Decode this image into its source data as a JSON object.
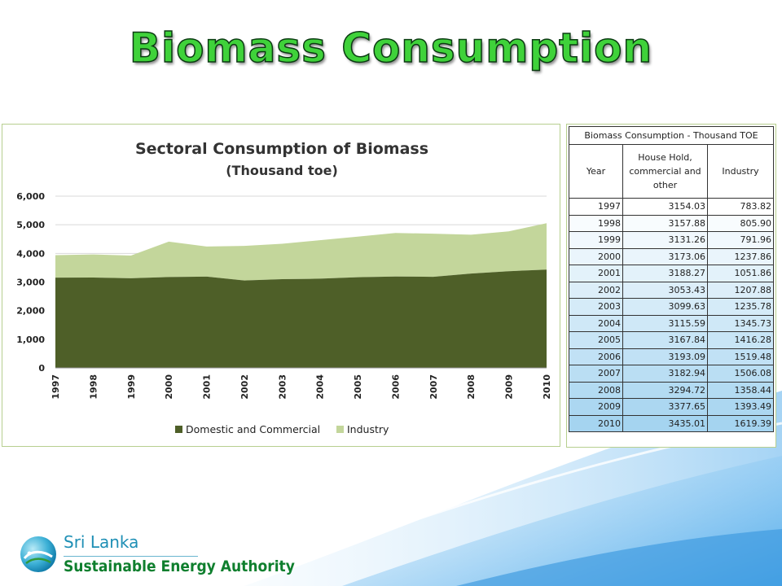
{
  "slide": {
    "title": "Biomass Consumption"
  },
  "chart_data": {
    "type": "area",
    "stacked": true,
    "title": "Sectoral Consumption of Biomass",
    "subtitle": "(Thousand  toe)",
    "categories": [
      "1997",
      "1998",
      "1999",
      "2000",
      "2001",
      "2002",
      "2003",
      "2004",
      "2005",
      "2006",
      "2007",
      "2008",
      "2009",
      "2010"
    ],
    "series": [
      {
        "name": "Domestic and Commercial",
        "color": "#4e5f28",
        "values": [
          3154.03,
          3157.88,
          3131.26,
          3173.06,
          3188.27,
          3053.43,
          3099.63,
          3115.59,
          3167.84,
          3193.09,
          3182.94,
          3294.72,
          3377.65,
          3435.01
        ]
      },
      {
        "name": "Industry",
        "color": "#c3d69b",
        "values": [
          783.82,
          805.9,
          791.96,
          1237.86,
          1051.86,
          1207.88,
          1235.78,
          1345.73,
          1416.28,
          1519.48,
          1506.08,
          1358.44,
          1393.49,
          1619.39
        ]
      }
    ],
    "yticks": [
      "0",
      "1,000",
      "2,000",
      "3,000",
      "4,000",
      "5,000",
      "6,000"
    ],
    "ylim": [
      0,
      6000
    ],
    "grid": true,
    "legend": "bottom"
  },
  "table": {
    "caption": "Biomass Consumption - Thousand TOE",
    "headers": [
      "Year",
      "House Hold, commercial and other",
      "Industry"
    ],
    "rows": [
      [
        "1997",
        "3154.03",
        "783.82"
      ],
      [
        "1998",
        "3157.88",
        "805.90"
      ],
      [
        "1999",
        "3131.26",
        "791.96"
      ],
      [
        "2000",
        "3173.06",
        "1237.86"
      ],
      [
        "2001",
        "3188.27",
        "1051.86"
      ],
      [
        "2002",
        "3053.43",
        "1207.88"
      ],
      [
        "2003",
        "3099.63",
        "1235.78"
      ],
      [
        "2004",
        "3115.59",
        "1345.73"
      ],
      [
        "2005",
        "3167.84",
        "1416.28"
      ],
      [
        "2006",
        "3193.09",
        "1519.48"
      ],
      [
        "2007",
        "3182.94",
        "1506.08"
      ],
      [
        "2008",
        "3294.72",
        "1358.44"
      ],
      [
        "2009",
        "3377.65",
        "1393.49"
      ],
      [
        "2010",
        "3435.01",
        "1619.39"
      ]
    ]
  },
  "logo": {
    "line1": "Sri Lanka",
    "line2": "Sustainable Energy Authority"
  }
}
